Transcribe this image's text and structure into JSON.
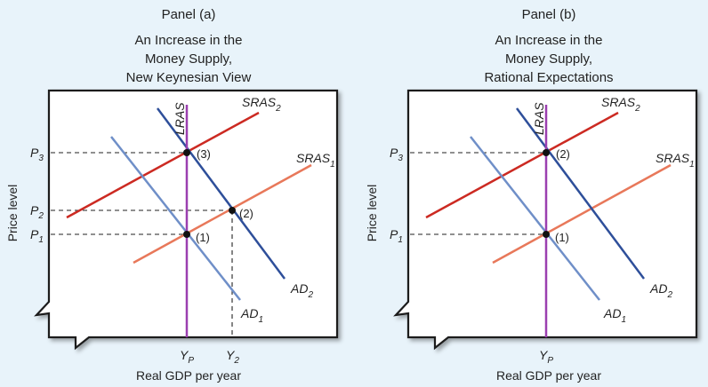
{
  "colors": {
    "background": "#e8f3fa",
    "panel_bg": "#ffffff",
    "lras": "#9b3fb0",
    "sras_old": "#e8785a",
    "sras_new": "#cc2a22",
    "ad_old": "#6f8fc8",
    "ad_new": "#2e4f9a",
    "point": "#111111"
  },
  "panels": [
    {
      "heading": "Panel (a)",
      "title_lines": [
        "An Increase in the",
        "Money Supply,",
        "New Keynesian View"
      ],
      "y_axis_label": "Price level",
      "x_axis_label": "Real GDP per year",
      "curves": {
        "lras": {
          "text": "LRAS"
        },
        "sras1": {
          "base": "SRAS",
          "sub": "1"
        },
        "sras2": {
          "base": "SRAS",
          "sub": "2"
        },
        "ad1": {
          "base": "AD",
          "sub": "1"
        },
        "ad2": {
          "base": "AD",
          "sub": "2"
        }
      },
      "price_labels": [
        {
          "base": "P",
          "sub": "3"
        },
        {
          "base": "P",
          "sub": "2"
        },
        {
          "base": "P",
          "sub": "1"
        }
      ],
      "output_labels": [
        {
          "base": "Y",
          "sub": "P"
        },
        {
          "base": "Y",
          "sub": "2"
        }
      ],
      "points": [
        "(3)",
        "(2)",
        "(1)"
      ]
    },
    {
      "heading": "Panel (b)",
      "title_lines": [
        "An Increase in the",
        "Money Supply,",
        "Rational Expectations"
      ],
      "y_axis_label": "Price level",
      "x_axis_label": "Real GDP per year",
      "curves": {
        "lras": {
          "text": "LRAS"
        },
        "sras1": {
          "base": "SRAS",
          "sub": "1"
        },
        "sras2": {
          "base": "SRAS",
          "sub": "2"
        },
        "ad1": {
          "base": "AD",
          "sub": "1"
        },
        "ad2": {
          "base": "AD",
          "sub": "2"
        }
      },
      "price_labels": [
        {
          "base": "P",
          "sub": "3"
        },
        {
          "base": "P",
          "sub": "1"
        }
      ],
      "output_labels": [
        {
          "base": "Y",
          "sub": "P"
        }
      ],
      "points": [
        "(2)",
        "(1)"
      ]
    }
  ]
}
